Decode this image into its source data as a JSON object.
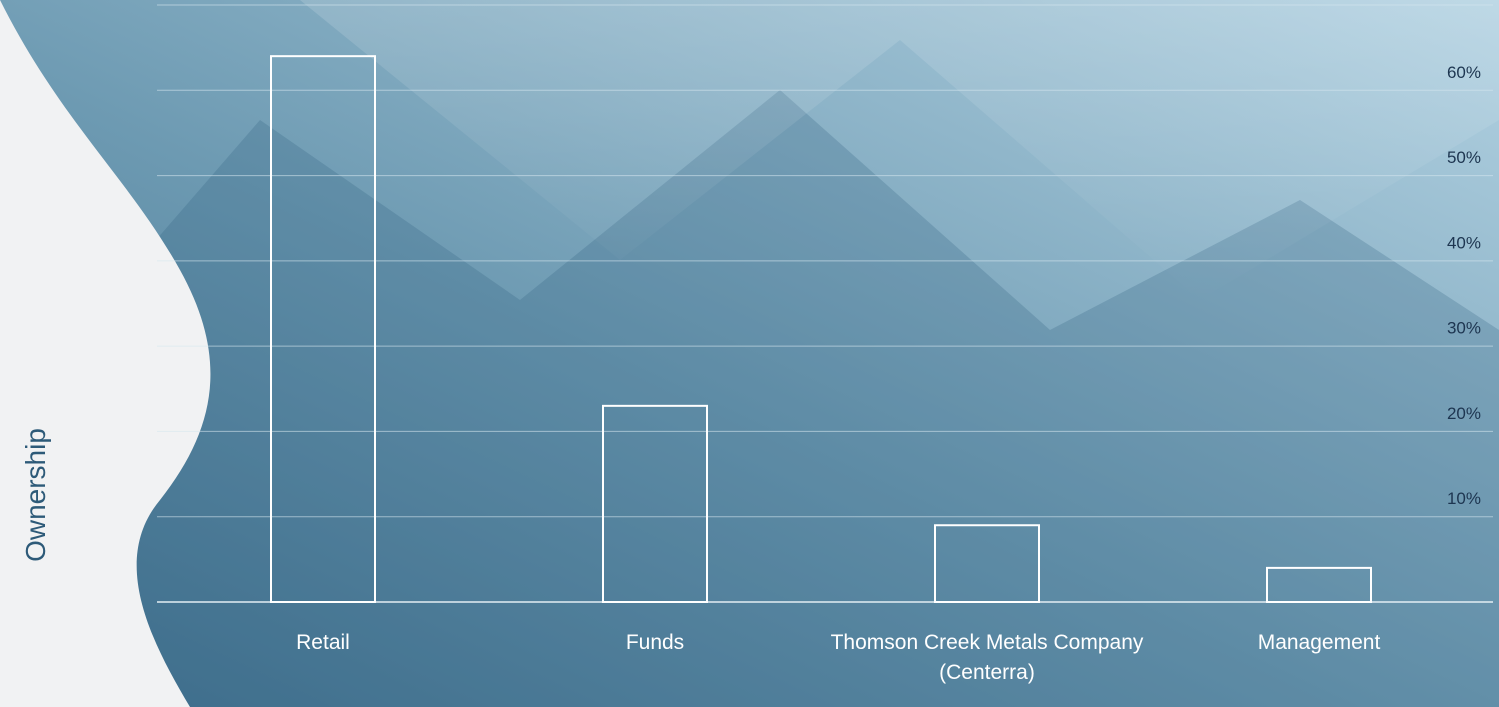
{
  "chart_data": {
    "type": "bar",
    "y_label": "Ownership",
    "categories": [
      "Retail",
      "Funds",
      "Thomson Creek Metals Company (Centerra)",
      "Management"
    ],
    "values": [
      64,
      23,
      9,
      4
    ],
    "color": "#ffffff",
    "ylim": [
      0,
      70
    ],
    "yticks": [
      {
        "value": 10,
        "label": "10%"
      },
      {
        "value": 20,
        "label": "20%"
      },
      {
        "value": 30,
        "label": "30%"
      },
      {
        "value": 40,
        "label": "40%"
      },
      {
        "value": 50,
        "label": "50%"
      },
      {
        "value": 60,
        "label": "60%"
      }
    ],
    "grid": true
  }
}
